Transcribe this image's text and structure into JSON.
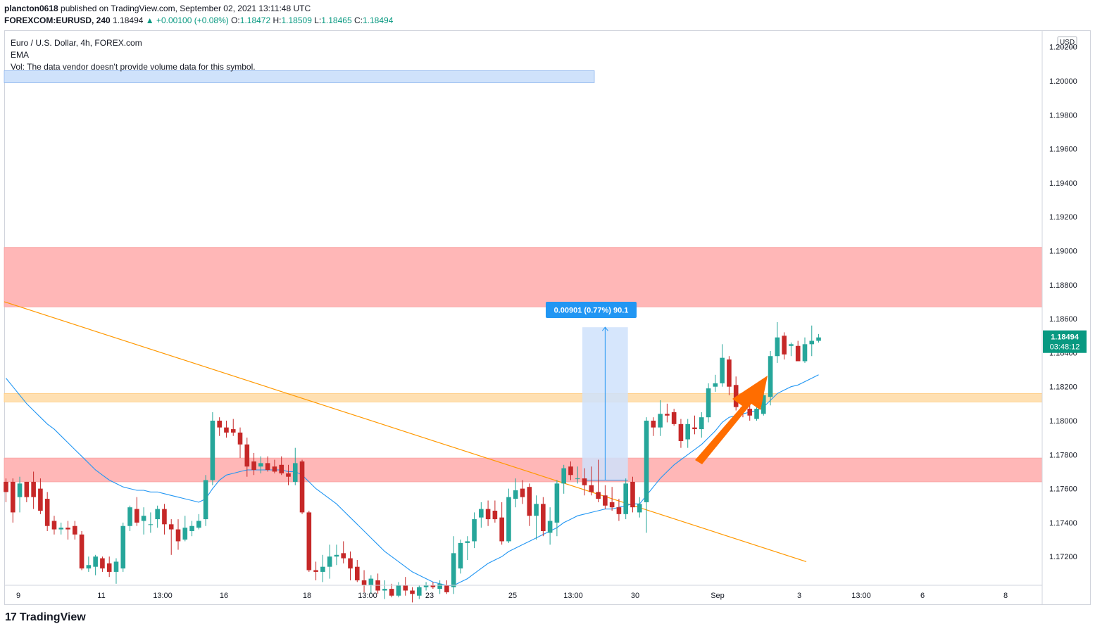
{
  "header": {
    "publisher": "plancton0618",
    "published_text": " published on TradingView.com, September 02, 2021 13:11:48 UTC",
    "symbol": "FOREXCOM:EURUSD, 240",
    "last": "1.18494",
    "change": "▲ +0.00100 (+0.08%)",
    "o_label": "O:",
    "o": "1.18472",
    "h_label": "H:",
    "h": "1.18509",
    "l_label": "L:",
    "l": "1.18465",
    "c_label": "C:",
    "c": "1.18494"
  },
  "legend": {
    "title": "Euro / U.S. Dollar, 4h, FOREX.com",
    "ema": "EMA",
    "vol": "Vol: The data vendor doesn't provide volume data for this symbol."
  },
  "price_axis": {
    "currency": "USD",
    "ticks": [
      "1.20200",
      "1.20000",
      "1.19800",
      "1.19600",
      "1.19400",
      "1.19200",
      "1.19000",
      "1.18800",
      "1.18600",
      "1.18400",
      "1.18200",
      "1.18000",
      "1.17800",
      "1.17600",
      "1.17400",
      "1.17200"
    ],
    "last_price": "1.18494",
    "countdown": "03:48:12"
  },
  "time_axis": {
    "ticks": [
      "9",
      "11",
      "13:00",
      "16",
      "18",
      "13:00",
      "23",
      "25",
      "13:00",
      "30",
      "Sep",
      "3",
      "13:00",
      "6",
      "8"
    ]
  },
  "measure": {
    "label": "0.00901 (0.77%) 90.1"
  },
  "brand": {
    "name": "TradingView",
    "mark": "17"
  },
  "colors": {
    "up": "#26a69a",
    "down": "#c62828",
    "up_wick": "#26a69a",
    "down_wick": "#c62828",
    "ema": "#2196f3",
    "trendline": "#ff9800",
    "resistance_zone": "#ffb3b3",
    "support_zone": "#ffb3b3",
    "orange_zone": "#ffe0b2",
    "blue_zone": "#cfe2fb",
    "arrow": "#ff6d00",
    "measure": "#2196f3",
    "last_price_bg": "#089981"
  },
  "chart_data": {
    "type": "candlestick",
    "symbol": "FOREXCOM:EURUSD",
    "timeframe": "4h",
    "ylim": [
      1.17,
      1.2027
    ],
    "grid": false,
    "candles": [
      {
        "o": 1.1764,
        "h": 1.1766,
        "l": 1.1752,
        "c": 1.1758
      },
      {
        "o": 1.1764,
        "h": 1.1766,
        "l": 1.174,
        "c": 1.1746
      },
      {
        "o": 1.1755,
        "h": 1.1767,
        "l": 1.1746,
        "c": 1.1763
      },
      {
        "o": 1.1764,
        "h": 1.1764,
        "l": 1.1752,
        "c": 1.1755
      },
      {
        "o": 1.1764,
        "h": 1.177,
        "l": 1.1748,
        "c": 1.1755
      },
      {
        "o": 1.176,
        "h": 1.1766,
        "l": 1.1745,
        "c": 1.1747
      },
      {
        "o": 1.1754,
        "h": 1.1758,
        "l": 1.1735,
        "c": 1.1738
      },
      {
        "o": 1.1741,
        "h": 1.1744,
        "l": 1.1733,
        "c": 1.1736
      },
      {
        "o": 1.1736,
        "h": 1.174,
        "l": 1.1733,
        "c": 1.1737
      },
      {
        "o": 1.1737,
        "h": 1.1741,
        "l": 1.173,
        "c": 1.1736
      },
      {
        "o": 1.1738,
        "h": 1.1741,
        "l": 1.173,
        "c": 1.1733
      },
      {
        "o": 1.1733,
        "h": 1.1735,
        "l": 1.1712,
        "c": 1.1713
      },
      {
        "o": 1.1713,
        "h": 1.172,
        "l": 1.1711,
        "c": 1.1715
      },
      {
        "o": 1.1714,
        "h": 1.1721,
        "l": 1.1709,
        "c": 1.172
      },
      {
        "o": 1.1719,
        "h": 1.172,
        "l": 1.1711,
        "c": 1.1713
      },
      {
        "o": 1.1716,
        "h": 1.172,
        "l": 1.1708,
        "c": 1.1711
      },
      {
        "o": 1.1711,
        "h": 1.1719,
        "l": 1.1704,
        "c": 1.1717
      },
      {
        "o": 1.1713,
        "h": 1.174,
        "l": 1.1711,
        "c": 1.1738
      },
      {
        "o": 1.1738,
        "h": 1.175,
        "l": 1.1735,
        "c": 1.1749
      },
      {
        "o": 1.1748,
        "h": 1.1755,
        "l": 1.1738,
        "c": 1.174
      },
      {
        "o": 1.1741,
        "h": 1.1749,
        "l": 1.1733,
        "c": 1.1744
      },
      {
        "o": 1.1739,
        "h": 1.1746,
        "l": 1.1734,
        "c": 1.1739
      },
      {
        "o": 1.1742,
        "h": 1.175,
        "l": 1.1737,
        "c": 1.1748
      },
      {
        "o": 1.1748,
        "h": 1.1751,
        "l": 1.1733,
        "c": 1.1739
      },
      {
        "o": 1.1739,
        "h": 1.1742,
        "l": 1.1721,
        "c": 1.1736
      },
      {
        "o": 1.1736,
        "h": 1.1742,
        "l": 1.1724,
        "c": 1.1729
      },
      {
        "o": 1.173,
        "h": 1.1744,
        "l": 1.1729,
        "c": 1.1737
      },
      {
        "o": 1.1735,
        "h": 1.1741,
        "l": 1.1732,
        "c": 1.1738
      },
      {
        "o": 1.1737,
        "h": 1.1745,
        "l": 1.1736,
        "c": 1.1741
      },
      {
        "o": 1.1742,
        "h": 1.1768,
        "l": 1.1738,
        "c": 1.1765
      },
      {
        "o": 1.1765,
        "h": 1.1805,
        "l": 1.1762,
        "c": 1.18
      },
      {
        "o": 1.18,
        "h": 1.1802,
        "l": 1.1791,
        "c": 1.1796
      },
      {
        "o": 1.1796,
        "h": 1.18,
        "l": 1.179,
        "c": 1.1793
      },
      {
        "o": 1.1795,
        "h": 1.1801,
        "l": 1.1791,
        "c": 1.1793
      },
      {
        "o": 1.1793,
        "h": 1.1796,
        "l": 1.1778,
        "c": 1.1786
      },
      {
        "o": 1.1786,
        "h": 1.179,
        "l": 1.1767,
        "c": 1.1773
      },
      {
        "o": 1.1776,
        "h": 1.1781,
        "l": 1.1768,
        "c": 1.1771
      },
      {
        "o": 1.1773,
        "h": 1.1779,
        "l": 1.1769,
        "c": 1.1775
      },
      {
        "o": 1.1775,
        "h": 1.1779,
        "l": 1.177,
        "c": 1.1771
      },
      {
        "o": 1.1773,
        "h": 1.1777,
        "l": 1.1769,
        "c": 1.177
      },
      {
        "o": 1.1774,
        "h": 1.1779,
        "l": 1.1768,
        "c": 1.1769
      },
      {
        "o": 1.1769,
        "h": 1.1774,
        "l": 1.1762,
        "c": 1.1767
      },
      {
        "o": 1.1764,
        "h": 1.1784,
        "l": 1.1762,
        "c": 1.1775
      },
      {
        "o": 1.1776,
        "h": 1.1777,
        "l": 1.1745,
        "c": 1.1746
      },
      {
        "o": 1.1746,
        "h": 1.1747,
        "l": 1.1711,
        "c": 1.1712
      },
      {
        "o": 1.1712,
        "h": 1.1717,
        "l": 1.1706,
        "c": 1.1711
      },
      {
        "o": 1.1711,
        "h": 1.1721,
        "l": 1.1705,
        "c": 1.1714
      },
      {
        "o": 1.1714,
        "h": 1.1727,
        "l": 1.1707,
        "c": 1.172
      },
      {
        "o": 1.172,
        "h": 1.1727,
        "l": 1.1715,
        "c": 1.1721
      },
      {
        "o": 1.1722,
        "h": 1.1729,
        "l": 1.1716,
        "c": 1.1719
      },
      {
        "o": 1.1719,
        "h": 1.1723,
        "l": 1.1706,
        "c": 1.1713
      },
      {
        "o": 1.1714,
        "h": 1.1718,
        "l": 1.1705,
        "c": 1.1706
      },
      {
        "o": 1.1706,
        "h": 1.1712,
        "l": 1.1699,
        "c": 1.1703
      },
      {
        "o": 1.1703,
        "h": 1.1709,
        "l": 1.1698,
        "c": 1.1707
      },
      {
        "o": 1.1706,
        "h": 1.171,
        "l": 1.1698,
        "c": 1.17
      },
      {
        "o": 1.17,
        "h": 1.1706,
        "l": 1.1695,
        "c": 1.1701
      },
      {
        "o": 1.1701,
        "h": 1.1704,
        "l": 1.1696,
        "c": 1.1697
      },
      {
        "o": 1.1697,
        "h": 1.1705,
        "l": 1.1696,
        "c": 1.1703
      },
      {
        "o": 1.1703,
        "h": 1.1708,
        "l": 1.1697,
        "c": 1.17
      },
      {
        "o": 1.17,
        "h": 1.1702,
        "l": 1.1693,
        "c": 1.1698
      },
      {
        "o": 1.1697,
        "h": 1.1703,
        "l": 1.1695,
        "c": 1.1702
      },
      {
        "o": 1.1702,
        "h": 1.1705,
        "l": 1.17,
        "c": 1.1703
      },
      {
        "o": 1.1703,
        "h": 1.1705,
        "l": 1.1701,
        "c": 1.1702
      },
      {
        "o": 1.1701,
        "h": 1.1706,
        "l": 1.1698,
        "c": 1.1704
      },
      {
        "o": 1.1703,
        "h": 1.1706,
        "l": 1.1698,
        "c": 1.1699
      },
      {
        "o": 1.1702,
        "h": 1.1732,
        "l": 1.1698,
        "c": 1.1722
      },
      {
        "o": 1.1713,
        "h": 1.173,
        "l": 1.171,
        "c": 1.1728
      },
      {
        "o": 1.1728,
        "h": 1.1732,
        "l": 1.1718,
        "c": 1.1729
      },
      {
        "o": 1.1729,
        "h": 1.1746,
        "l": 1.1725,
        "c": 1.1742
      },
      {
        "o": 1.1743,
        "h": 1.1752,
        "l": 1.1737,
        "c": 1.1748
      },
      {
        "o": 1.1748,
        "h": 1.1753,
        "l": 1.1738,
        "c": 1.1742
      },
      {
        "o": 1.1747,
        "h": 1.1753,
        "l": 1.174,
        "c": 1.1742
      },
      {
        "o": 1.1743,
        "h": 1.1752,
        "l": 1.1727,
        "c": 1.1729
      },
      {
        "o": 1.1729,
        "h": 1.176,
        "l": 1.1728,
        "c": 1.1755
      },
      {
        "o": 1.1754,
        "h": 1.1766,
        "l": 1.1749,
        "c": 1.1759
      },
      {
        "o": 1.176,
        "h": 1.1765,
        "l": 1.1751,
        "c": 1.1755
      },
      {
        "o": 1.1761,
        "h": 1.1763,
        "l": 1.1738,
        "c": 1.1744
      },
      {
        "o": 1.1744,
        "h": 1.1756,
        "l": 1.173,
        "c": 1.1751
      },
      {
        "o": 1.1751,
        "h": 1.1755,
        "l": 1.1732,
        "c": 1.1735
      },
      {
        "o": 1.1734,
        "h": 1.1749,
        "l": 1.1727,
        "c": 1.1741
      },
      {
        "o": 1.174,
        "h": 1.1765,
        "l": 1.1732,
        "c": 1.1763
      },
      {
        "o": 1.1763,
        "h": 1.1774,
        "l": 1.1757,
        "c": 1.1772
      },
      {
        "o": 1.1773,
        "h": 1.1776,
        "l": 1.1765,
        "c": 1.1768
      },
      {
        "o": 1.1766,
        "h": 1.1773,
        "l": 1.1763,
        "c": 1.1766
      },
      {
        "o": 1.1766,
        "h": 1.1772,
        "l": 1.1756,
        "c": 1.1762
      },
      {
        "o": 1.1762,
        "h": 1.1773,
        "l": 1.1756,
        "c": 1.1758
      },
      {
        "o": 1.1758,
        "h": 1.1777,
        "l": 1.1752,
        "c": 1.1754
      },
      {
        "o": 1.1756,
        "h": 1.1762,
        "l": 1.1748,
        "c": 1.175
      },
      {
        "o": 1.1752,
        "h": 1.1761,
        "l": 1.1747,
        "c": 1.1749
      },
      {
        "o": 1.1749,
        "h": 1.1754,
        "l": 1.1741,
        "c": 1.1745
      },
      {
        "o": 1.1745,
        "h": 1.1766,
        "l": 1.1742,
        "c": 1.1763
      },
      {
        "o": 1.1764,
        "h": 1.1767,
        "l": 1.1746,
        "c": 1.1749
      },
      {
        "o": 1.1746,
        "h": 1.1755,
        "l": 1.1743,
        "c": 1.1751
      },
      {
        "o": 1.1752,
        "h": 1.1802,
        "l": 1.1734,
        "c": 1.18
      },
      {
        "o": 1.18,
        "h": 1.1802,
        "l": 1.1791,
        "c": 1.1796
      },
      {
        "o": 1.1796,
        "h": 1.1812,
        "l": 1.1791,
        "c": 1.1804
      },
      {
        "o": 1.1804,
        "h": 1.181,
        "l": 1.1799,
        "c": 1.1803
      },
      {
        "o": 1.1805,
        "h": 1.1807,
        "l": 1.1797,
        "c": 1.1798
      },
      {
        "o": 1.1798,
        "h": 1.1801,
        "l": 1.1784,
        "c": 1.1788
      },
      {
        "o": 1.1789,
        "h": 1.1801,
        "l": 1.1784,
        "c": 1.1798
      },
      {
        "o": 1.1796,
        "h": 1.1803,
        "l": 1.1792,
        "c": 1.1795
      },
      {
        "o": 1.1795,
        "h": 1.1805,
        "l": 1.179,
        "c": 1.1802
      },
      {
        "o": 1.1802,
        "h": 1.1822,
        "l": 1.1799,
        "c": 1.1819
      },
      {
        "o": 1.182,
        "h": 1.1827,
        "l": 1.1817,
        "c": 1.1822
      },
      {
        "o": 1.1822,
        "h": 1.1845,
        "l": 1.182,
        "c": 1.1837
      },
      {
        "o": 1.1836,
        "h": 1.1838,
        "l": 1.1815,
        "c": 1.182
      },
      {
        "o": 1.1821,
        "h": 1.1826,
        "l": 1.1806,
        "c": 1.1808
      },
      {
        "o": 1.1808,
        "h": 1.1811,
        "l": 1.1802,
        "c": 1.1807
      },
      {
        "o": 1.1807,
        "h": 1.181,
        "l": 1.18,
        "c": 1.1803
      },
      {
        "o": 1.1801,
        "h": 1.1814,
        "l": 1.18,
        "c": 1.1807
      },
      {
        "o": 1.1804,
        "h": 1.1819,
        "l": 1.1803,
        "c": 1.1815
      },
      {
        "o": 1.1814,
        "h": 1.1841,
        "l": 1.1809,
        "c": 1.1838
      },
      {
        "o": 1.1838,
        "h": 1.1858,
        "l": 1.1834,
        "c": 1.1849
      },
      {
        "o": 1.185,
        "h": 1.1852,
        "l": 1.1836,
        "c": 1.1839
      },
      {
        "o": 1.1844,
        "h": 1.1846,
        "l": 1.1838,
        "c": 1.1845
      },
      {
        "o": 1.1844,
        "h": 1.1847,
        "l": 1.1836,
        "c": 1.1835
      },
      {
        "o": 1.1835,
        "h": 1.1849,
        "l": 1.1834,
        "c": 1.1845
      },
      {
        "o": 1.1845,
        "h": 1.1856,
        "l": 1.1838,
        "c": 1.1847
      },
      {
        "o": 1.1847,
        "h": 1.1851,
        "l": 1.1846,
        "c": 1.1849
      }
    ],
    "ema": [
      1.1825,
      1.182,
      1.1815,
      1.181,
      1.1806,
      1.1802,
      1.1798,
      1.1795,
      1.1791,
      1.1787,
      1.1783,
      1.1779,
      1.1775,
      1.1771,
      1.1768,
      1.1765,
      1.1763,
      1.1761,
      1.176,
      1.1759,
      1.1759,
      1.1758,
      1.1758,
      1.1757,
      1.1756,
      1.1755,
      1.1754,
      1.1753,
      1.1752,
      1.1754,
      1.176,
      1.1765,
      1.1768,
      1.1769,
      1.177,
      1.1771,
      1.1771,
      1.1771,
      1.1771,
      1.1771,
      1.1771,
      1.177,
      1.177,
      1.1768,
      1.1764,
      1.176,
      1.1757,
      1.1754,
      1.1751,
      1.1747,
      1.1743,
      1.1739,
      1.1735,
      1.1731,
      1.1727,
      1.1723,
      1.172,
      1.1717,
      1.1714,
      1.1711,
      1.1709,
      1.1707,
      1.1705,
      1.1704,
      1.1703,
      1.1703,
      1.1705,
      1.1707,
      1.171,
      1.1713,
      1.1716,
      1.1718,
      1.172,
      1.1723,
      1.1725,
      1.1727,
      1.1729,
      1.1731,
      1.1733,
      1.1735,
      1.1737,
      1.174,
      1.1742,
      1.1744,
      1.1745,
      1.1746,
      1.1747,
      1.1748,
      1.1748,
      1.1749,
      1.175,
      1.1751,
      1.1751,
      1.1756,
      1.1761,
      1.1766,
      1.177,
      1.1774,
      1.1777,
      1.178,
      1.1783,
      1.1786,
      1.179,
      1.1794,
      1.1799,
      1.1802,
      1.1803,
      1.1804,
      1.1805,
      1.1806,
      1.1808,
      1.1812,
      1.1816,
      1.1818,
      1.182,
      1.1821,
      1.1823,
      1.1825,
      1.1827
    ],
    "horizontal_zones": [
      {
        "name": "upper-resistance",
        "from": 1.1867,
        "to": 1.1902
      },
      {
        "name": "orange-level",
        "from": 1.1811,
        "to": 1.1816
      },
      {
        "name": "lower-zone",
        "from": 1.1764,
        "to": 1.1778
      },
      {
        "name": "blue-top-zone",
        "from": 1.1999,
        "to": 1.2006
      }
    ],
    "trendline": {
      "p1": {
        "bar": 0,
        "price": 1.187
      },
      "p2": {
        "bar": 118,
        "price": 1.1717
      }
    },
    "measure": {
      "from_price": 1.1765,
      "to_price": 1.1855,
      "bar_start": 84,
      "bar_end": 90
    }
  }
}
